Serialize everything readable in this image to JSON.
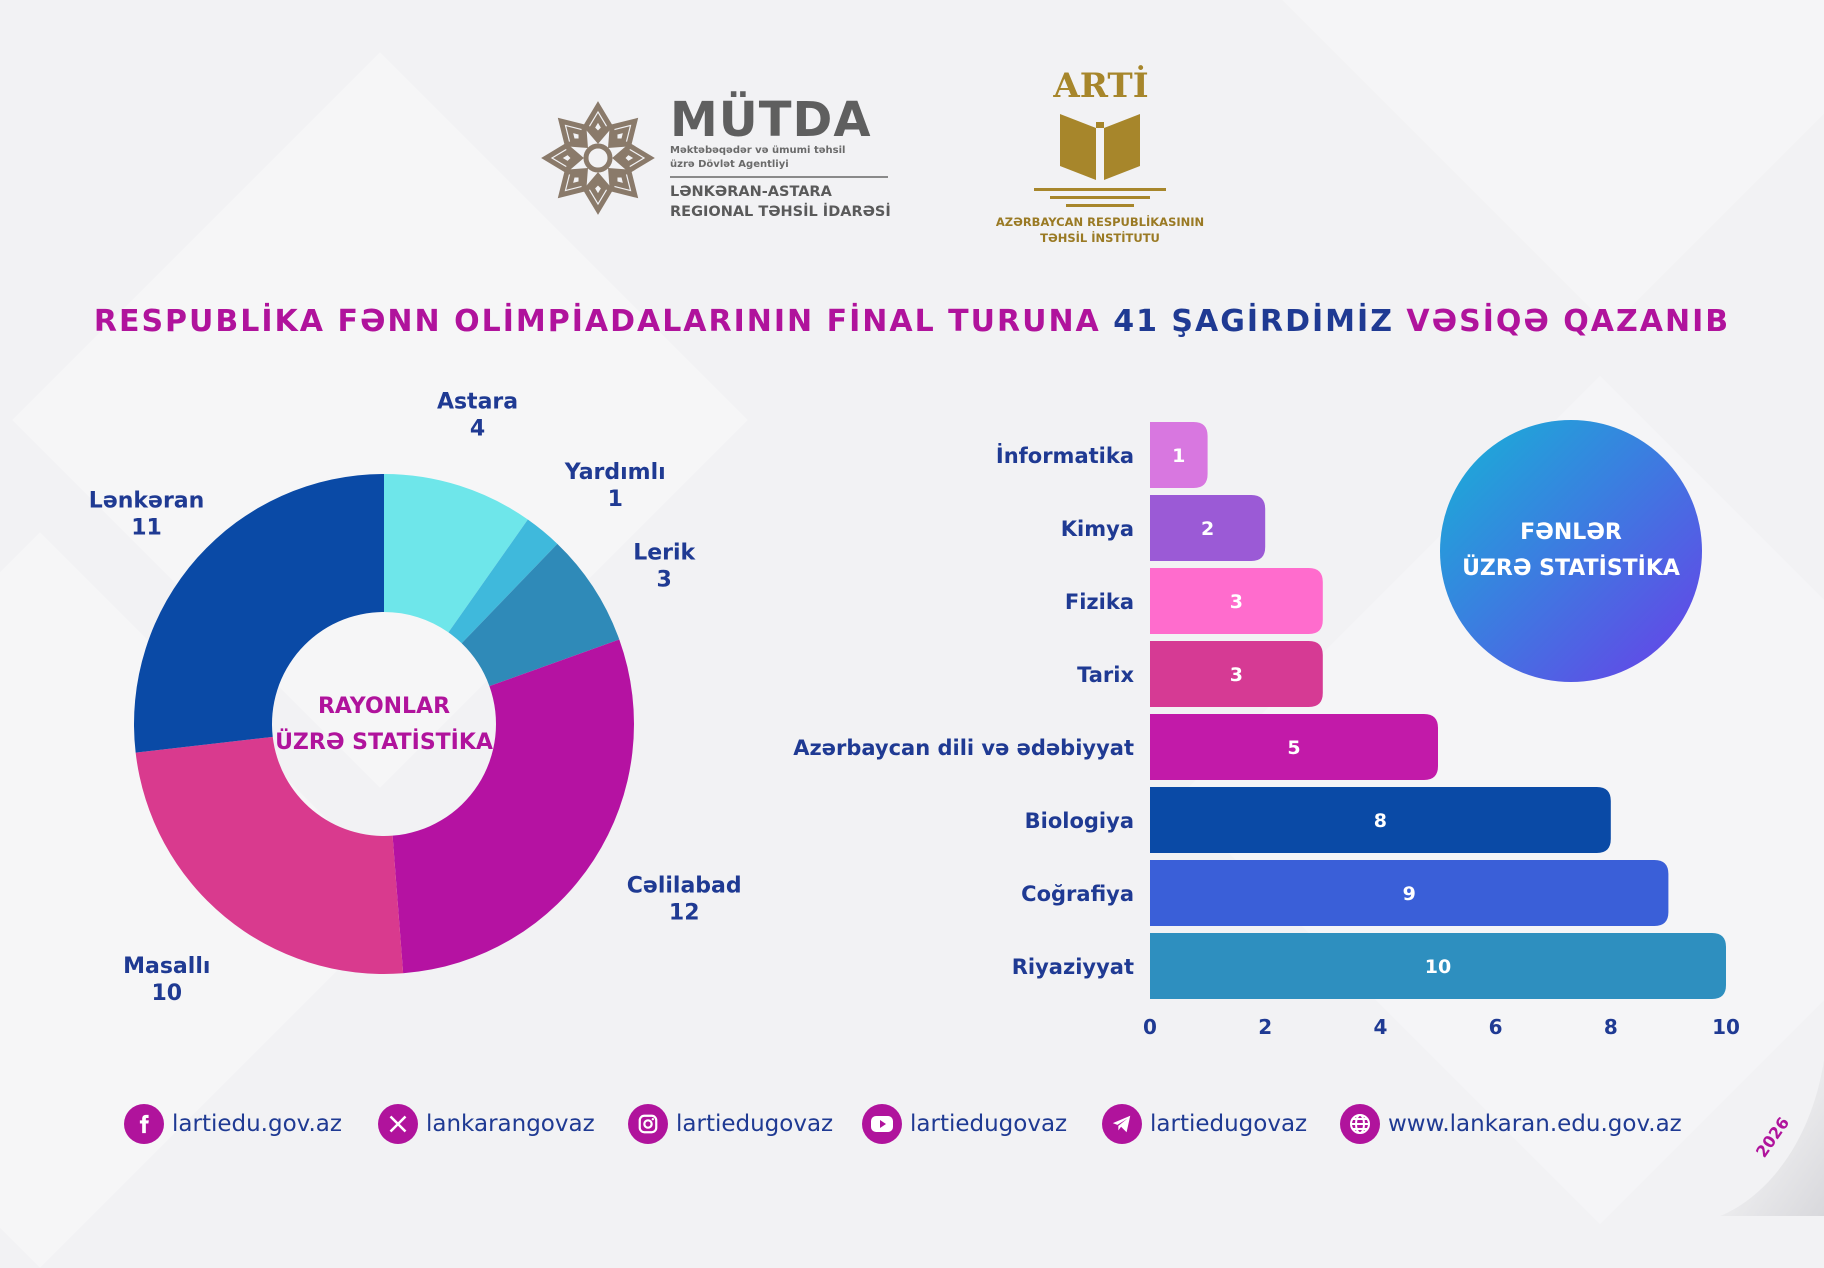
{
  "logos": {
    "mutda": {
      "name": "MÜTDA",
      "subtitle_line1": "Məktəbəqədər və ümumi təhsil",
      "subtitle_line2": "üzrə Dövlət Agentliyi",
      "region_line1": "LƏNKƏRAN-ASTARA",
      "region_line2": "REGIONAL TƏHSİL İDARƏSİ"
    },
    "arti": {
      "name": "ARTİ",
      "subtitle_line1": "AZƏRBAYCAN RESPUBLİKASININ",
      "subtitle_line2": "TƏHSİL İNSTİTUTU"
    }
  },
  "title": {
    "part1": "RESPUBLİKA FƏNN OLİMPİADALARININ FİNAL TURUNA",
    "part2": "41 ŞAGİRDİMİZ",
    "part3": "VƏSİQƏ QAZANIB"
  },
  "donut": {
    "center_line1": "RAYONLAR",
    "center_line2": "ÜZRƏ STATİSTİKA"
  },
  "subjects_badge": {
    "line1": "FƏNLƏR",
    "line2": "ÜZRƏ STATİSTİKA"
  },
  "chart_data": [
    {
      "type": "pie",
      "categories": [
        "Astara",
        "Yardımlı",
        "Lerik",
        "Cəlilabad",
        "Masallı",
        "Lənkəran"
      ],
      "values": [
        4,
        1,
        3,
        12,
        10,
        11
      ],
      "colors": [
        "#6ee6ea",
        "#3fb9dc",
        "#2f8ab8",
        "#b512a2",
        "#d93a8e",
        "#0a4aa6"
      ],
      "donut": true
    },
    {
      "type": "bar",
      "orientation": "horizontal",
      "categories": [
        "İnformatika",
        "Kimya",
        "Fizika",
        "Tarix",
        "Azərbaycan dili və ədəbiyyat",
        "Biologiya",
        "Coğrafiya",
        "Riyaziyyat"
      ],
      "values": [
        1,
        2,
        3,
        3,
        5,
        8,
        9,
        10
      ],
      "colors": [
        "#d877e0",
        "#9b5ad6",
        "#ff6ccd",
        "#d63a94",
        "#c21aa9",
        "#0a4aa6",
        "#3a5fd8",
        "#2e8fbf"
      ],
      "xlim": [
        0,
        10
      ],
      "xticks": [
        "0",
        "2",
        "4",
        "6",
        "8",
        "10"
      ]
    }
  ],
  "footer": {
    "items": [
      {
        "icon": "facebook-icon",
        "text": "lartiedu.gov.az"
      },
      {
        "icon": "x-icon",
        "text": "lankarangovaz"
      },
      {
        "icon": "instagram-icon",
        "text": "lartiedugovaz"
      },
      {
        "icon": "youtube-icon",
        "text": "lartiedugovaz"
      },
      {
        "icon": "telegram-icon",
        "text": "lartiedugovaz"
      },
      {
        "icon": "globe-icon",
        "text": "www.lankaran.edu.gov.az"
      }
    ]
  },
  "year": "2026",
  "colors": {
    "magenta": "#b0139c",
    "navy": "#1f3a93",
    "gold": "#a7862b"
  }
}
